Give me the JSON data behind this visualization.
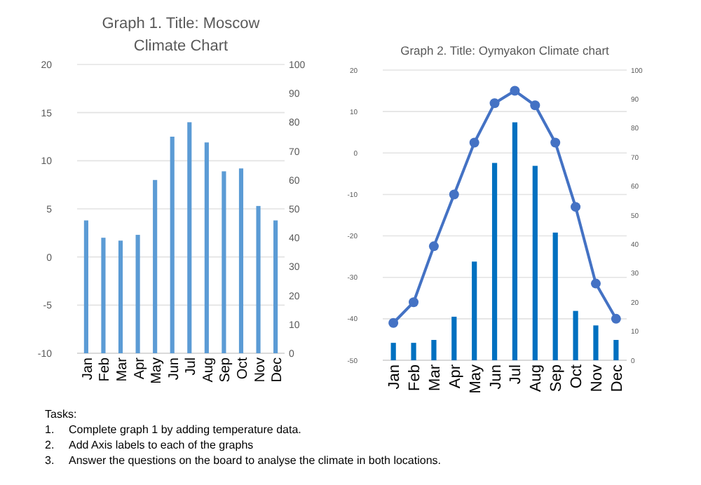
{
  "chart_data": [
    {
      "type": "bar",
      "title": "Graph 1. Title: Moscow Climate Chart",
      "categories": [
        "Jan",
        "Feb",
        "Mar",
        "Apr",
        "May",
        "Jun",
        "Jul",
        "Aug",
        "Sep",
        "Oct",
        "Nov",
        "Dec"
      ],
      "series": [
        {
          "type": "bar",
          "axis": "y2",
          "color": "#5b9bd5",
          "values": [
            46,
            40,
            39,
            41,
            60,
            75,
            80,
            73,
            63,
            64,
            51,
            46
          ]
        }
      ],
      "ylim": [
        -10,
        20
      ],
      "yticks": [
        -10,
        -5,
        0,
        5,
        10,
        15,
        20
      ],
      "y2lim": [
        0,
        100
      ],
      "y2ticks": [
        0,
        10,
        20,
        30,
        40,
        50,
        60,
        70,
        80,
        90,
        100
      ],
      "grid": "y"
    },
    {
      "type": "bar",
      "title": "Graph 2. Title: Oymyakon Climate chart",
      "categories": [
        "Jan",
        "Feb",
        "Mar",
        "Apr",
        "May",
        "Jun",
        "Jul",
        "Aug",
        "Sep",
        "Oct",
        "Nov",
        "Dec"
      ],
      "series": [
        {
          "type": "bar",
          "axis": "y2",
          "color": "#0070c0",
          "values": [
            6,
            6,
            7,
            15,
            34,
            68,
            82,
            67,
            44,
            17,
            12,
            7
          ]
        },
        {
          "type": "line",
          "axis": "y",
          "color": "#4472c4",
          "marker": "circle",
          "values": [
            -41,
            -36,
            -22.5,
            -10,
            2.5,
            12,
            15,
            11.5,
            2.5,
            -13,
            -31.5,
            -40
          ]
        }
      ],
      "ylim": [
        -50,
        20
      ],
      "yticks": [
        -50,
        -40,
        -30,
        -20,
        -10,
        0,
        10,
        20
      ],
      "y2lim": [
        0,
        100
      ],
      "y2ticks": [
        0,
        10,
        20,
        30,
        40,
        50,
        60,
        70,
        80,
        90,
        100
      ],
      "grid": "y"
    },
    {
      "type": "other",
      "annotations": [
        "Tasks:",
        "1.\tComplete graph 1 by adding temperature data.",
        "2.\tAdd Axis labels to each of the graphs",
        "3.\tAnswer the questions on the board to analyse the climate in both locations."
      ]
    }
  ]
}
